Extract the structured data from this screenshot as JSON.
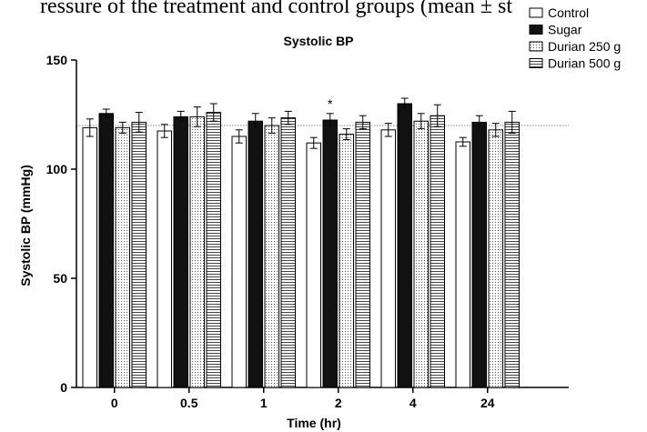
{
  "header_text": "ressure of the treatment and control groups (mean ± st",
  "chart_data": {
    "type": "bar",
    "title": "Systolic BP",
    "xlabel": "Time (hr)",
    "ylabel": "Systolic BP (mmHg)",
    "ylim": [
      0,
      150
    ],
    "yticks": [
      0,
      50,
      100,
      150
    ],
    "categories": [
      "0",
      "0.5",
      "1",
      "2",
      "4",
      "24"
    ],
    "reference_line": 120,
    "legend_position": "top-right",
    "series": [
      {
        "name": "Control",
        "fill": "white",
        "values": [
          119,
          117.5,
          115,
          112,
          118,
          112.5
        ],
        "errors": [
          4,
          3,
          3,
          2.5,
          3,
          2
        ]
      },
      {
        "name": "Sugar",
        "fill": "black",
        "values": [
          125.5,
          124,
          122,
          122.5,
          130,
          121.5
        ],
        "errors": [
          2,
          2.5,
          3.5,
          3,
          2.5,
          3
        ]
      },
      {
        "name": "Durian 250 g",
        "fill": "dots",
        "values": [
          119,
          124,
          120,
          116,
          122,
          118
        ],
        "errors": [
          2.5,
          4.5,
          3.5,
          2.5,
          3.5,
          3
        ]
      },
      {
        "name": "Durian 500 g",
        "fill": "hlines",
        "values": [
          121.5,
          126,
          123.5,
          121.5,
          124.5,
          121.5
        ],
        "errors": [
          4.5,
          4,
          3,
          3,
          5,
          5
        ]
      }
    ],
    "annotations": [
      {
        "text": "*",
        "category": "2",
        "series": "Sugar"
      }
    ]
  }
}
